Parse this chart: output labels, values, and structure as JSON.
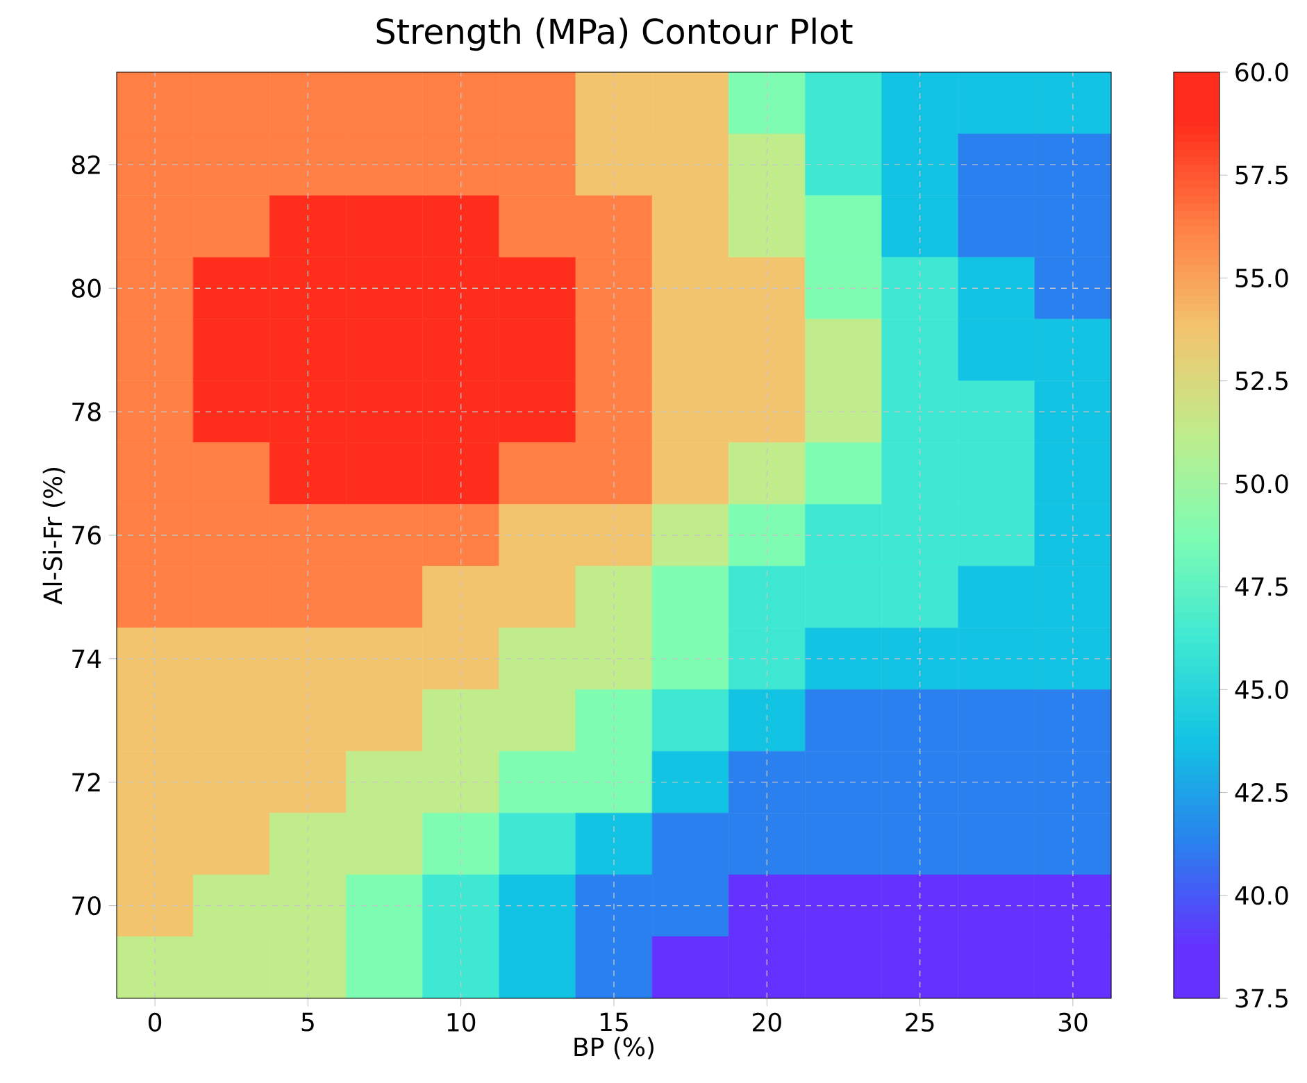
{
  "chart_data": {
    "type": "heatmap",
    "title": "Strength (MPa) Contour Plot",
    "xlabel": "BP (%)",
    "ylabel": "Al-Si-Fr (%)",
    "categories": [
      "0",
      null,
      "5",
      null,
      "10",
      null,
      "15",
      null,
      "20",
      null,
      "25",
      null,
      "30"
    ],
    "y_categories": [
      null,
      "82",
      null,
      "80",
      null,
      "78",
      null,
      "76",
      null,
      "74",
      null,
      "72",
      null,
      "70",
      null
    ],
    "grid": true,
    "clim": [
      37.5,
      60
    ],
    "cticks": [
      {
        "value": 37.5,
        "label": "37.5"
      },
      {
        "value": 40,
        "label": "40.0"
      },
      {
        "value": 42.5,
        "label": "42.5"
      },
      {
        "value": 45,
        "label": "45.0"
      },
      {
        "value": 47.5,
        "label": "47.5"
      },
      {
        "value": 50,
        "label": "50.0"
      },
      {
        "value": 52.5,
        "label": "52.5"
      },
      {
        "value": 55,
        "label": "55.0"
      },
      {
        "value": 57.5,
        "label": "57.5"
      },
      {
        "value": 60,
        "label": "60.0"
      }
    ],
    "cells": [
      [
        56.25,
        56.25,
        56.25,
        56.25,
        56.25,
        56.25,
        53.75,
        53.75,
        48.75,
        46.25,
        43.75,
        43.75,
        43.75
      ],
      [
        56.25,
        56.25,
        56.25,
        56.25,
        56.25,
        56.25,
        53.75,
        53.75,
        51.25,
        46.25,
        43.75,
        41.25,
        41.25
      ],
      [
        56.25,
        56.25,
        58.75,
        58.75,
        58.75,
        56.25,
        56.25,
        53.75,
        51.25,
        48.75,
        43.75,
        41.25,
        41.25
      ],
      [
        56.25,
        58.75,
        58.75,
        58.75,
        58.75,
        58.75,
        56.25,
        53.75,
        53.75,
        48.75,
        46.25,
        43.75,
        41.25
      ],
      [
        56.25,
        58.75,
        58.75,
        58.75,
        58.75,
        58.75,
        56.25,
        53.75,
        53.75,
        51.25,
        46.25,
        43.75,
        43.75
      ],
      [
        56.25,
        58.75,
        58.75,
        58.75,
        58.75,
        58.75,
        56.25,
        53.75,
        53.75,
        51.25,
        46.25,
        46.25,
        43.75
      ],
      [
        56.25,
        56.25,
        58.75,
        58.75,
        58.75,
        56.25,
        56.25,
        53.75,
        51.25,
        48.75,
        46.25,
        46.25,
        43.75
      ],
      [
        56.25,
        56.25,
        56.25,
        56.25,
        56.25,
        53.75,
        53.75,
        51.25,
        48.75,
        46.25,
        46.25,
        46.25,
        43.75
      ],
      [
        56.25,
        56.25,
        56.25,
        56.25,
        53.75,
        53.75,
        51.25,
        48.75,
        46.25,
        46.25,
        46.25,
        43.75,
        43.75
      ],
      [
        53.75,
        53.75,
        53.75,
        53.75,
        53.75,
        51.25,
        51.25,
        48.75,
        46.25,
        43.75,
        43.75,
        43.75,
        43.75
      ],
      [
        53.75,
        53.75,
        53.75,
        53.75,
        51.25,
        51.25,
        48.75,
        46.25,
        43.75,
        41.25,
        41.25,
        41.25,
        41.25
      ],
      [
        53.75,
        53.75,
        53.75,
        51.25,
        51.25,
        48.75,
        48.75,
        43.75,
        41.25,
        41.25,
        41.25,
        41.25,
        41.25
      ],
      [
        53.75,
        53.75,
        51.25,
        51.25,
        48.75,
        46.25,
        43.75,
        41.25,
        41.25,
        41.25,
        41.25,
        41.25,
        41.25
      ],
      [
        53.75,
        51.25,
        51.25,
        48.75,
        46.25,
        43.75,
        41.25,
        41.25,
        38.75,
        38.75,
        38.75,
        38.75,
        38.75
      ],
      [
        51.25,
        51.25,
        51.25,
        48.75,
        46.25,
        43.75,
        41.25,
        38.75,
        38.75,
        38.75,
        38.75,
        38.75,
        38.75
      ]
    ]
  }
}
